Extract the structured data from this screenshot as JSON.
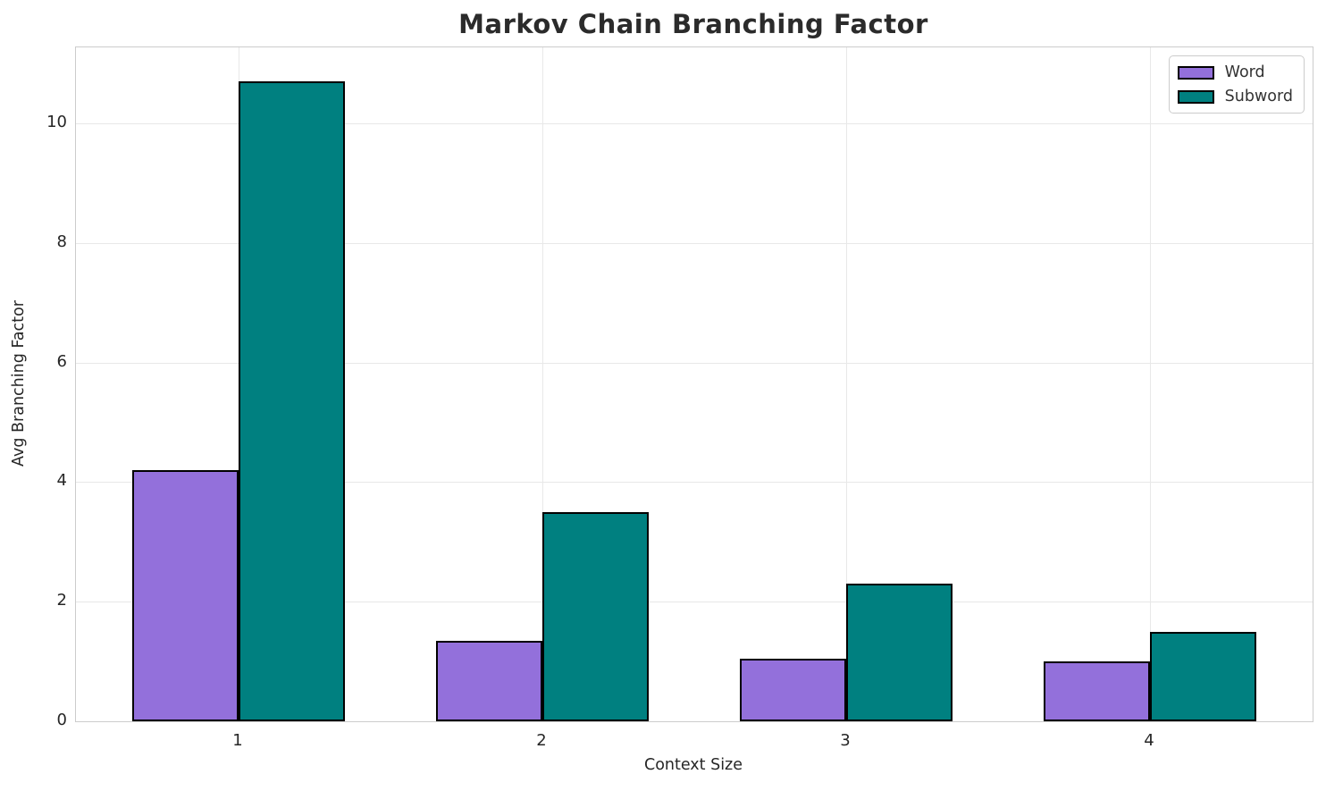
{
  "chart_data": {
    "type": "bar",
    "title": "Markov Chain Branching Factor",
    "xlabel": "Context Size",
    "ylabel": "Avg Branching Factor",
    "categories": [
      "1",
      "2",
      "3",
      "4"
    ],
    "series": [
      {
        "name": "Word",
        "color": "#9370DB",
        "values": [
          4.2,
          1.35,
          1.05,
          1.0
        ]
      },
      {
        "name": "Subword",
        "color": "#008080",
        "values": [
          10.7,
          3.5,
          2.3,
          1.5
        ]
      }
    ],
    "ylim": [
      0,
      11.27
    ],
    "yticks": [
      0,
      2,
      4,
      6,
      8,
      10
    ],
    "grid": true,
    "legend_position": "upper right",
    "bar_edge_color": "#000000",
    "grid_color": "#e8e8e8",
    "spine_color": "#cccccc"
  }
}
